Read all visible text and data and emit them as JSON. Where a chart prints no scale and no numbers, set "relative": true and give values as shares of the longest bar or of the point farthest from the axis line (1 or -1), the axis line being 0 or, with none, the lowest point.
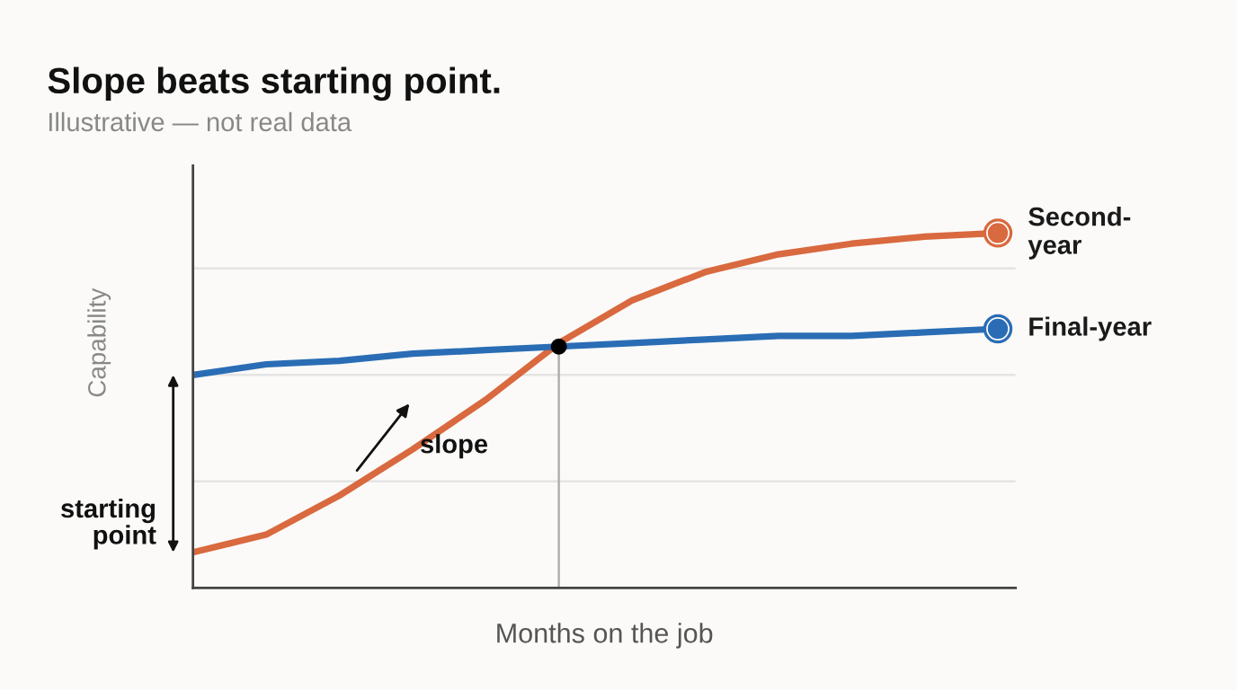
{
  "chart_data": {
    "type": "line",
    "title": "Slope beats starting point.",
    "subtitle": "Illustrative — not real data",
    "xlabel": "Months on the job",
    "ylabel": "Capability",
    "relative": true,
    "categories": [
      null,
      null,
      null,
      null,
      null,
      null,
      null,
      null,
      null,
      null,
      null,
      null
    ],
    "series": [
      {
        "name": "Second-year",
        "color": "#d9693f",
        "values": [
          0.1,
          0.15,
          0.26,
          0.39,
          0.53,
          0.69,
          0.81,
          0.89,
          0.94,
          0.97,
          0.99,
          1.0
        ]
      },
      {
        "name": "Final-year",
        "color": "#2a6db5",
        "values": [
          0.6,
          0.63,
          0.64,
          0.66,
          0.67,
          0.68,
          0.69,
          0.7,
          0.71,
          0.71,
          0.72,
          0.73
        ]
      }
    ],
    "ref_lines": [
      {
        "axis": "y",
        "value": 0.3,
        "color": "#e4e4e4"
      },
      {
        "axis": "y",
        "value": 0.6,
        "color": "#e4e4e4"
      },
      {
        "axis": "y",
        "value": 0.9,
        "color": "#e4e4e4"
      }
    ],
    "annotations": [
      "slope",
      "starting point"
    ]
  }
}
